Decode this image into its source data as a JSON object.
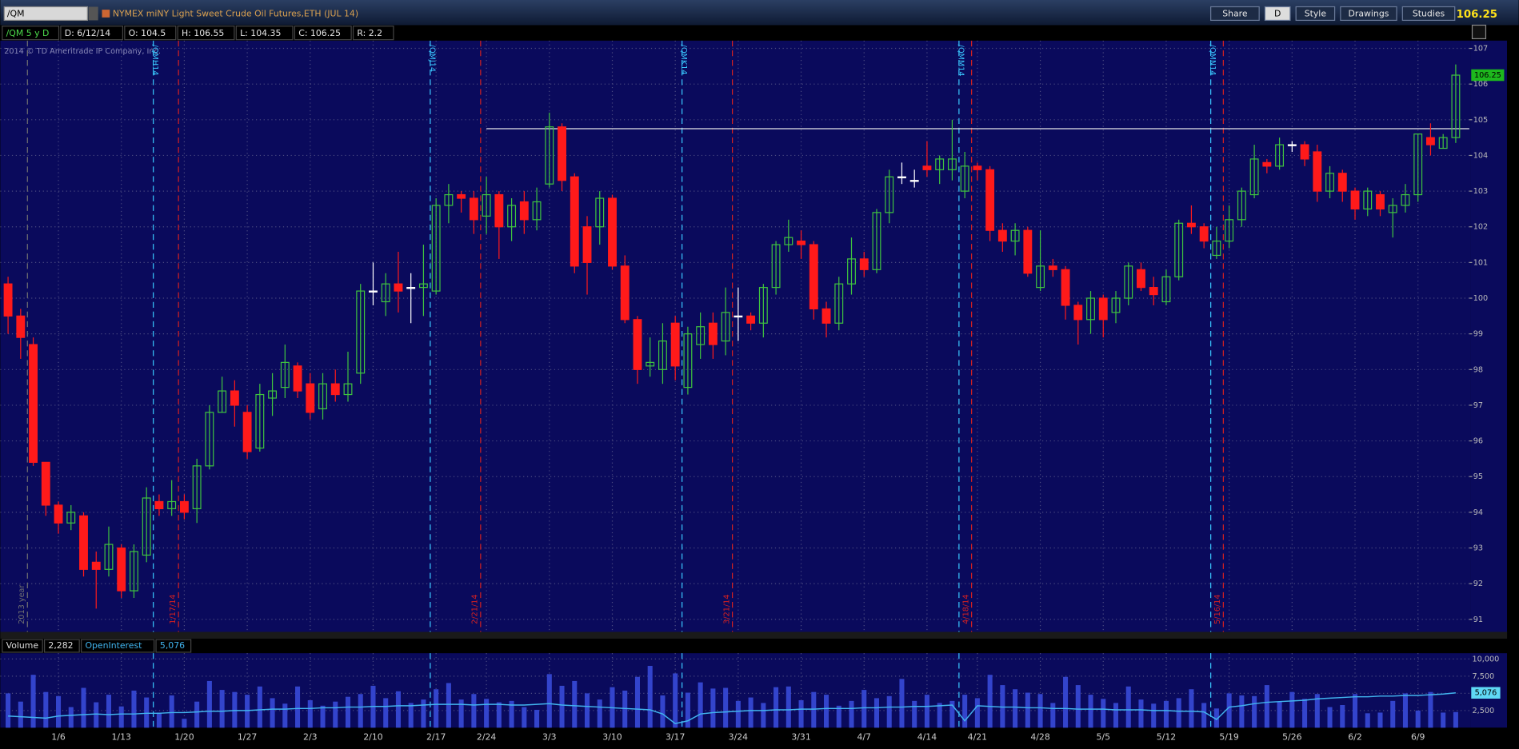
{
  "header": {
    "symbol": "/QM",
    "description": "NYMEX miNY Light Sweet Crude Oil Futures,ETH (JUL 14)",
    "buttons": [
      "Share",
      "D",
      "Style",
      "Drawings",
      "Studies"
    ],
    "last": "106.25",
    "info": [
      "/QM 5 y D",
      "D: 6/12/14",
      "O: 104.5",
      "H: 106.55",
      "L: 104.35",
      "C: 106.25",
      "R: 2.2"
    ],
    "copyright": "2014 © TD Ameritrade IP Company, Inc."
  },
  "chart_data": {
    "type": "candlestick",
    "categories": [
      null,
      null,
      null,
      null,
      "1/6",
      null,
      null,
      null,
      null,
      "1/13",
      null,
      null,
      null,
      null,
      "1/20",
      null,
      null,
      null,
      null,
      "1/27",
      null,
      null,
      null,
      null,
      "2/3",
      null,
      null,
      null,
      null,
      "2/10",
      null,
      null,
      null,
      null,
      "2/17",
      null,
      null,
      null,
      "2/24",
      null,
      null,
      null,
      null,
      "3/3",
      null,
      null,
      null,
      null,
      "3/10",
      null,
      null,
      null,
      null,
      "3/17",
      null,
      null,
      null,
      null,
      "3/24",
      null,
      null,
      null,
      null,
      "3/31",
      null,
      null,
      null,
      null,
      "4/7",
      null,
      null,
      null,
      null,
      "4/14",
      null,
      null,
      null,
      "4/21",
      null,
      null,
      null,
      null,
      "4/28",
      null,
      null,
      null,
      null,
      "5/5",
      null,
      null,
      null,
      null,
      "5/12",
      null,
      null,
      null,
      null,
      "5/19",
      null,
      null,
      null,
      null,
      "5/26",
      null,
      null,
      null,
      null,
      "6/2",
      null,
      null,
      null,
      null,
      "6/9",
      null,
      null,
      null
    ],
    "open": [
      100.4,
      99.5,
      98.7,
      95.4,
      94.2,
      93.7,
      93.9,
      92.6,
      92.4,
      93.0,
      91.8,
      92.8,
      94.3,
      94.1,
      94.3,
      94.1,
      95.3,
      96.8,
      97.4,
      96.8,
      95.8,
      97.2,
      97.5,
      98.1,
      97.6,
      96.9,
      97.6,
      97.3,
      97.9,
      100.2,
      99.9,
      100.4,
      100.3,
      100.3,
      100.2,
      102.6,
      102.9,
      102.8,
      102.3,
      102.9,
      102.0,
      102.7,
      102.2,
      103.2,
      104.8,
      103.4,
      102.0,
      102.0,
      102.8,
      100.9,
      99.4,
      98.1,
      98.0,
      99.3,
      97.5,
      98.7,
      99.3,
      98.8,
      99.5,
      99.5,
      99.3,
      100.3,
      101.5,
      101.6,
      101.5,
      99.7,
      99.3,
      100.4,
      101.1,
      100.8,
      102.4,
      103.4,
      103.3,
      103.7,
      103.6,
      103.6,
      103.0,
      103.7,
      103.6,
      101.9,
      101.6,
      101.9,
      100.3,
      100.9,
      100.8,
      99.8,
      99.4,
      100.0,
      99.6,
      100.0,
      100.8,
      100.3,
      99.9,
      100.6,
      102.1,
      102.0,
      101.2,
      101.6,
      102.2,
      102.9,
      103.8,
      103.7,
      104.3,
      104.3,
      104.1,
      103.0,
      103.5,
      103.0,
      102.5,
      102.9,
      102.4,
      102.6,
      102.9,
      104.5,
      104.2,
      104.5
    ],
    "high": [
      100.6,
      99.7,
      98.9,
      95.4,
      94.3,
      94.2,
      94.0,
      92.9,
      93.6,
      93.1,
      93.1,
      94.7,
      94.5,
      94.9,
      94.5,
      95.5,
      97.0,
      97.8,
      97.7,
      97.0,
      97.6,
      97.9,
      98.7,
      98.2,
      97.9,
      97.9,
      98.0,
      98.5,
      100.4,
      101.0,
      100.7,
      101.3,
      100.7,
      101.5,
      102.8,
      103.2,
      103.0,
      103.0,
      103.4,
      103.0,
      102.8,
      103.0,
      103.1,
      105.2,
      104.9,
      103.5,
      102.3,
      103.0,
      102.9,
      101.2,
      99.5,
      98.9,
      99.3,
      99.5,
      99.2,
      99.6,
      99.6,
      100.3,
      100.3,
      99.6,
      100.4,
      101.6,
      102.2,
      101.9,
      101.6,
      99.9,
      100.6,
      101.7,
      101.3,
      102.5,
      103.6,
      103.8,
      103.6,
      104.4,
      104.0,
      105.0,
      104.1,
      103.8,
      103.7,
      102.1,
      102.1,
      102.0,
      101.9,
      101.1,
      100.9,
      99.9,
      100.2,
      100.1,
      100.2,
      101.0,
      101.0,
      100.6,
      100.8,
      102.2,
      102.6,
      102.1,
      102.0,
      102.6,
      103.1,
      104.3,
      103.9,
      104.5,
      104.4,
      104.4,
      104.3,
      103.7,
      103.6,
      103.1,
      103.1,
      103.0,
      102.8,
      103.2,
      104.6,
      104.9,
      104.6,
      106.55
    ],
    "low": [
      99.0,
      98.3,
      95.3,
      93.9,
      93.4,
      93.5,
      92.2,
      91.3,
      92.2,
      91.6,
      91.6,
      92.6,
      93.9,
      93.9,
      93.8,
      93.7,
      95.2,
      96.8,
      96.4,
      95.5,
      95.7,
      96.7,
      97.2,
      97.2,
      96.6,
      96.6,
      97.1,
      97.1,
      97.6,
      99.8,
      99.5,
      99.6,
      99.3,
      99.5,
      100.1,
      102.1,
      102.4,
      101.8,
      101.8,
      101.1,
      101.6,
      101.8,
      101.9,
      103.1,
      103.0,
      100.7,
      100.1,
      101.5,
      100.8,
      99.3,
      97.6,
      97.8,
      97.6,
      97.7,
      97.3,
      98.3,
      98.3,
      98.4,
      98.8,
      99.1,
      98.9,
      100.1,
      101.3,
      101.1,
      99.4,
      98.9,
      99.1,
      100.1,
      100.6,
      100.7,
      102.1,
      103.2,
      103.1,
      103.4,
      103.2,
      103.3,
      102.8,
      103.3,
      101.6,
      101.3,
      101.2,
      100.6,
      100.2,
      100.6,
      99.4,
      98.7,
      99.0,
      98.9,
      99.3,
      99.8,
      100.2,
      99.8,
      99.8,
      100.5,
      101.8,
      101.4,
      101.1,
      101.4,
      102.0,
      102.8,
      103.5,
      103.6,
      104.1,
      103.7,
      102.7,
      102.8,
      102.7,
      102.2,
      102.3,
      102.3,
      101.7,
      102.4,
      102.7,
      104.0,
      104.2,
      104.35
    ],
    "close": [
      99.5,
      98.9,
      95.4,
      94.2,
      93.7,
      94.0,
      92.4,
      92.4,
      93.1,
      91.8,
      92.9,
      94.4,
      94.1,
      94.3,
      94.0,
      95.3,
      96.8,
      97.4,
      97.0,
      95.7,
      97.3,
      97.4,
      98.2,
      97.4,
      96.8,
      97.6,
      97.3,
      97.6,
      100.2,
      100.2,
      100.4,
      100.2,
      100.3,
      100.4,
      102.6,
      102.9,
      102.8,
      102.2,
      102.9,
      102.0,
      102.6,
      102.2,
      102.7,
      104.8,
      103.3,
      100.9,
      101.0,
      102.8,
      100.9,
      99.4,
      98.0,
      98.2,
      98.8,
      98.1,
      99.0,
      99.2,
      98.7,
      99.6,
      99.5,
      99.3,
      100.3,
      101.5,
      101.7,
      101.5,
      99.7,
      99.3,
      100.4,
      101.1,
      100.8,
      102.4,
      103.4,
      103.4,
      103.3,
      103.6,
      103.9,
      103.9,
      103.7,
      103.6,
      101.9,
      101.6,
      101.9,
      100.7,
      100.9,
      100.8,
      99.8,
      99.4,
      100.0,
      99.4,
      100.0,
      100.9,
      100.3,
      100.1,
      100.6,
      102.1,
      102.0,
      101.6,
      101.6,
      102.2,
      103.0,
      103.9,
      103.7,
      104.3,
      104.3,
      103.9,
      103.0,
      103.5,
      103.0,
      102.5,
      103.0,
      102.5,
      102.6,
      102.9,
      104.6,
      104.3,
      104.5,
      106.25
    ],
    "up_color": "#3fc43f",
    "down_color": "#ff1a1a",
    "ylim": [
      91,
      107
    ],
    "yticks": [
      91,
      92,
      93,
      94,
      95,
      96,
      97,
      98,
      99,
      100,
      101,
      102,
      103,
      104,
      105,
      106,
      107
    ],
    "grid": true,
    "last_price_label": "106.25",
    "hline": {
      "value": 104.75,
      "from_index": 38
    },
    "expirations": [
      {
        "label": "/QMH14",
        "category_index": 12
      },
      {
        "label": "/QMJ14",
        "category_index": 34
      },
      {
        "label": "/QMK14",
        "category_index": 54
      },
      {
        "label": "/QMM14",
        "category_index": 76
      },
      {
        "label": "/QMN14",
        "category_index": 96
      }
    ],
    "date_markers": [
      {
        "label": "2013 year",
        "category_index": 2
      },
      {
        "label": "1/17/14",
        "category_index": 14
      },
      {
        "label": "2/21/14",
        "category_index": 38
      },
      {
        "label": "3/21/14",
        "category_index": 58
      },
      {
        "label": "4/18/14",
        "category_index": 77
      },
      {
        "label": "5/16/14",
        "category_index": 97
      }
    ],
    "volume": {
      "label": "Volume",
      "last_label": "2,282",
      "color": "#3344cc",
      "values": [
        5000,
        3800,
        7700,
        5200,
        4600,
        3000,
        5800,
        3700,
        4800,
        3100,
        5400,
        4400,
        2200,
        4700,
        1300,
        3800,
        6800,
        5500,
        5200,
        4800,
        6000,
        4300,
        3500,
        6000,
        4000,
        3200,
        3800,
        4500,
        4900,
        6100,
        4300,
        5300,
        3600,
        4100,
        5600,
        6500,
        4100,
        4900,
        4200,
        3700,
        3900,
        3000,
        2600,
        7800,
        6100,
        6800,
        5000,
        4100,
        5900,
        5400,
        7400,
        9000,
        4700,
        7900,
        5100,
        6600,
        5700,
        5800,
        3900,
        4400,
        3600,
        5900,
        6000,
        4000,
        5200,
        4800,
        3200,
        3900,
        5500,
        4300,
        4600,
        7100,
        3900,
        4800,
        3600,
        3900,
        4800,
        4300,
        7700,
        6200,
        5600,
        5100,
        4900,
        3600,
        7400,
        6200,
        4800,
        4200,
        3600,
        6000,
        4100,
        3500,
        3900,
        4300,
        5600,
        3600,
        2800,
        5000,
        4700,
        4600,
        6200,
        3800,
        5200,
        4200,
        4900,
        3000,
        3300,
        4900,
        2100,
        2200,
        3900,
        5000,
        2500,
        5200,
        2200,
        2282
      ],
      "ylim": [
        0,
        10000
      ],
      "yticks": [
        {
          "value": 2500,
          "label": "2,500"
        },
        {
          "value": 5000,
          "label": "5,000"
        },
        {
          "value": 7500,
          "label": "7,500"
        },
        {
          "value": 10000,
          "label": "10,000"
        }
      ]
    },
    "open_interest": {
      "label": "OpenInterest",
      "last_label": "5,076",
      "color": "#41b4ee",
      "values": [
        1700,
        1600,
        1500,
        1400,
        1700,
        1800,
        1900,
        2000,
        1900,
        2000,
        2000,
        2100,
        2100,
        2200,
        2200,
        2300,
        2400,
        2400,
        2500,
        2500,
        2600,
        2700,
        2700,
        2800,
        2800,
        2900,
        2900,
        3000,
        3000,
        3100,
        3100,
        3200,
        3200,
        3300,
        3400,
        3400,
        3400,
        3300,
        3400,
        3400,
        3300,
        3300,
        3400,
        3500,
        3300,
        3200,
        3100,
        3000,
        2900,
        2800,
        2700,
        2600,
        2000,
        600,
        1000,
        2000,
        2200,
        2300,
        2400,
        2500,
        2500,
        2600,
        2600,
        2700,
        2700,
        2800,
        2800,
        2800,
        2900,
        2900,
        3000,
        3000,
        3100,
        3100,
        3200,
        3300,
        1000,
        3200,
        3100,
        3000,
        3000,
        2900,
        2900,
        2800,
        2800,
        2700,
        2700,
        2700,
        2600,
        2600,
        2600,
        2500,
        2500,
        2400,
        2400,
        2300,
        1200,
        3000,
        3200,
        3500,
        3700,
        3800,
        3900,
        4000,
        4200,
        4300,
        4400,
        4500,
        4500,
        4600,
        4600,
        4700,
        4700,
        4800,
        4900,
        5076
      ]
    }
  }
}
